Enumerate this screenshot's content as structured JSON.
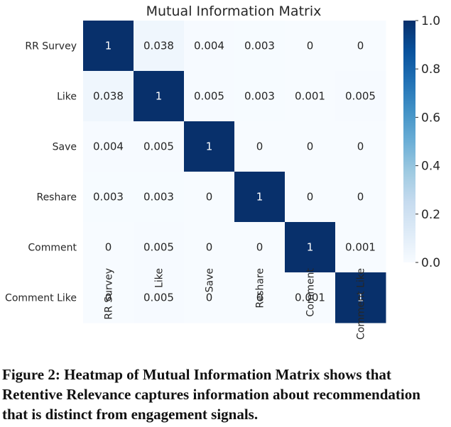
{
  "chart_data": {
    "type": "heatmap",
    "title": "Mutual Information Matrix",
    "row_labels": [
      "RR Survey",
      "Like",
      "Save",
      "Reshare",
      "Comment",
      "Comment Like"
    ],
    "col_labels": [
      "RR Survey",
      "Like",
      "Save",
      "Reshare",
      "Comment",
      "Comment Like"
    ],
    "values": [
      [
        1,
        0.038,
        0.004,
        0.003,
        0,
        0
      ],
      [
        0.038,
        1,
        0.005,
        0.003,
        0.001,
        0.005
      ],
      [
        0.004,
        0.005,
        1,
        0,
        0,
        0
      ],
      [
        0.003,
        0.003,
        0,
        1,
        0,
        0
      ],
      [
        0,
        0.005,
        0,
        0,
        1,
        0.001
      ],
      [
        0,
        0.005,
        0,
        0,
        0.001,
        1
      ]
    ],
    "cell_labels": [
      [
        "1",
        "0.038",
        "0.004",
        "0.003",
        "0",
        "0"
      ],
      [
        "0.038",
        "1",
        "0.005",
        "0.003",
        "0.001",
        "0.005"
      ],
      [
        "0.004",
        "0.005",
        "1",
        "0",
        "0",
        "0"
      ],
      [
        "0.003",
        "0.003",
        "0",
        "1",
        "0",
        "0"
      ],
      [
        "0",
        "0.005",
        "0",
        "0",
        "1",
        "0.001"
      ],
      [
        "0",
        "0.005",
        "0",
        "0",
        "0.001",
        "1"
      ]
    ],
    "colormap": "Blues",
    "vmin": 0,
    "vmax": 1,
    "colorbar_ticks": [
      0.0,
      0.2,
      0.4,
      0.6,
      0.8,
      1.0
    ],
    "colorbar_tick_labels": [
      "0.0",
      "0.2",
      "0.4",
      "0.6",
      "0.8",
      "1.0"
    ]
  },
  "caption": "Figure 2: Heatmap of Mutual Information Matrix shows that Retentive Relevance captures information about recommendation that is distinct from engagement signals."
}
